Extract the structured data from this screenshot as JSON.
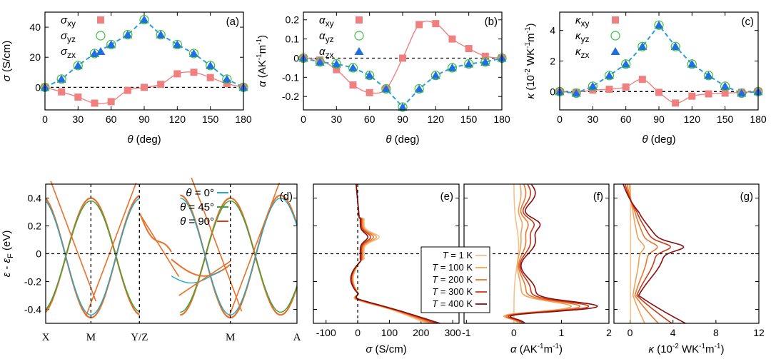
{
  "colors": {
    "pink": "#f08080",
    "dash": "#2a9fd6",
    "green": "#3cbf3c",
    "blue": "#1f6fe0",
    "band0": "#22a7c9",
    "band45": "#3aa23a",
    "band90": "#e03a1e",
    "bandbase": "#e8702a",
    "T1": "#f2c38a",
    "T100": "#f2a25a",
    "T200": "#e9772f",
    "T300": "#c83a18",
    "T400": "#8b0d0d"
  },
  "chart_data": [
    {
      "id": "a",
      "type": "scatter",
      "panel_label": "(a)",
      "ylabel_sym": "σ",
      "ylabel_unit": " (S/cm)",
      "xlabel_sym": "θ",
      "xlabel_unit": " (deg)",
      "xlim": [
        0,
        180
      ],
      "ylim": [
        -15,
        50
      ],
      "xticks": [
        "0",
        "30",
        "60",
        "90",
        "120",
        "150",
        "180"
      ],
      "xtick_vals": [
        0,
        30,
        60,
        90,
        120,
        150,
        180
      ],
      "yticks": [
        "0",
        "20",
        "40"
      ],
      "ytick_vals": [
        0,
        20,
        40
      ],
      "x": [
        0,
        15,
        30,
        45,
        60,
        75,
        90,
        105,
        120,
        135,
        150,
        165,
        180
      ],
      "series": [
        {
          "name": "xy",
          "sym": "σ",
          "sub": "xy",
          "values": [
            0,
            -3,
            -6.5,
            -10.5,
            -9.5,
            -2,
            0,
            2,
            9,
            10,
            6.5,
            2.5,
            0
          ]
        },
        {
          "name": "yz",
          "sym": "σ",
          "sub": "yz",
          "values": [
            0,
            5.5,
            14.5,
            22.5,
            28.5,
            35,
            45,
            35,
            28.5,
            22.5,
            14.5,
            5.5,
            0
          ]
        },
        {
          "name": "zx",
          "sym": "σ",
          "sub": "zx",
          "values": [
            0,
            5.5,
            14.5,
            22.5,
            28.5,
            35,
            45,
            35,
            28.5,
            22.5,
            14.5,
            5.5,
            0
          ]
        }
      ]
    },
    {
      "id": "b",
      "type": "scatter",
      "panel_label": "(b)",
      "ylabel_sym": "α",
      "ylabel_unit": " (AK-1m-1)",
      "xlabel_sym": "θ",
      "xlabel_unit": " (deg)",
      "xlim": [
        0,
        180
      ],
      "ylim": [
        -0.27,
        0.24
      ],
      "xticks": [
        "0",
        "30",
        "60",
        "90",
        "120",
        "150",
        "180"
      ],
      "xtick_vals": [
        0,
        30,
        60,
        90,
        120,
        150,
        180
      ],
      "yticks": [
        "-0.2",
        "-0.1",
        "0",
        "0.1",
        "0.2"
      ],
      "ytick_vals": [
        -0.2,
        -0.1,
        0,
        0.1,
        0.2
      ],
      "x": [
        0,
        15,
        30,
        45,
        60,
        75,
        90,
        105,
        120,
        135,
        150,
        165,
        180
      ],
      "series": [
        {
          "name": "xy",
          "sym": "α",
          "sub": "xy",
          "values": [
            0,
            -0.01,
            -0.06,
            -0.14,
            -0.18,
            -0.16,
            0,
            0.175,
            0.18,
            0.1,
            0.05,
            0.01,
            0
          ]
        },
        {
          "name": "yz",
          "sym": "α",
          "sub": "yz",
          "values": [
            0,
            -0.02,
            -0.03,
            -0.05,
            -0.09,
            -0.16,
            -0.255,
            -0.16,
            -0.09,
            -0.05,
            -0.03,
            -0.02,
            0
          ]
        },
        {
          "name": "zx",
          "sym": "α",
          "sub": "zx",
          "values": [
            0,
            -0.02,
            -0.03,
            -0.05,
            -0.09,
            -0.16,
            -0.255,
            -0.16,
            -0.09,
            -0.05,
            -0.03,
            -0.02,
            0
          ]
        }
      ]
    },
    {
      "id": "c",
      "type": "scatter",
      "panel_label": "(c)",
      "ylabel_sym": "κ",
      "ylabel_unit": " (10-2 WK-1m-1)",
      "xlabel_sym": "θ",
      "xlabel_unit": " (deg)",
      "xlim": [
        0,
        180
      ],
      "ylim": [
        -1.2,
        5.2
      ],
      "xticks": [
        "0",
        "30",
        "60",
        "90",
        "120",
        "150",
        "180"
      ],
      "xtick_vals": [
        0,
        30,
        60,
        90,
        120,
        150,
        180
      ],
      "yticks": [
        "0",
        "2",
        "4"
      ],
      "ytick_vals": [
        0,
        2,
        4
      ],
      "x": [
        0,
        15,
        30,
        45,
        60,
        75,
        90,
        105,
        120,
        135,
        150,
        165,
        180
      ],
      "series": [
        {
          "name": "xy",
          "sym": "κ",
          "sub": "xy",
          "values": [
            0,
            -0.05,
            0.1,
            0.15,
            0.3,
            0.8,
            -0.05,
            -0.75,
            -0.3,
            -0.15,
            -0.1,
            -0.05,
            0
          ]
        },
        {
          "name": "yz",
          "sym": "κ",
          "sub": "yz",
          "values": [
            0,
            -0.1,
            0.35,
            1.05,
            1.8,
            2.95,
            4.35,
            2.95,
            1.8,
            1.05,
            0.35,
            -0.1,
            0
          ]
        },
        {
          "name": "zx",
          "sym": "κ",
          "sub": "zx",
          "values": [
            0,
            -0.1,
            0.35,
            1.05,
            1.8,
            2.95,
            4.35,
            2.95,
            1.8,
            1.05,
            0.35,
            -0.1,
            0
          ]
        }
      ]
    },
    {
      "id": "d",
      "type": "line",
      "panel_label": "(d)",
      "ylabel": "ε - εF (eV)",
      "ylim": [
        -0.5,
        0.5
      ],
      "yticks": [
        "-0.4",
        "-0.2",
        "0",
        "0.2",
        "0.4"
      ],
      "ytick_vals": [
        -0.4,
        -0.2,
        0,
        0.2,
        0.4
      ],
      "kpoints": [
        "X",
        "M",
        "Y/Z",
        "M",
        "A"
      ],
      "kpoint_pos": [
        0,
        0.18,
        0.373,
        0.735,
        1.0
      ],
      "legend": [
        {
          "sym": "θ",
          "text": " = 0°"
        },
        {
          "sym": "θ",
          "text": " = 45°"
        },
        {
          "sym": "θ",
          "text": " = 90°"
        }
      ]
    },
    {
      "id": "e",
      "type": "line",
      "panel_label": "(e)",
      "xlabel_sym": "σ",
      "xlabel_unit": " (S/cm)",
      "xlim": [
        -140,
        320
      ],
      "ylim": [
        -0.5,
        0.5
      ],
      "xticks": [
        "-100",
        "0",
        "100",
        "200",
        "300"
      ],
      "xtick_vals": [
        -100,
        0,
        100,
        200,
        300
      ],
      "legend": [
        "T = 1 K",
        "T = 100 K",
        "T = 200 K",
        "T = 300 K",
        "T = 400 K"
      ]
    },
    {
      "id": "f",
      "type": "line",
      "panel_label": "(f)",
      "xlabel_sym": "α",
      "xlabel_unit": " (AK-1m-1)",
      "xlim": [
        -1.05,
        2.0
      ],
      "ylim": [
        -0.5,
        0.5
      ],
      "xticks": [
        "-1",
        "0",
        "1",
        "2"
      ],
      "xtick_vals": [
        -1,
        0,
        1,
        2
      ]
    },
    {
      "id": "g",
      "type": "line",
      "panel_label": "(g)",
      "xlabel_sym": "κ",
      "xlabel_unit": " (10-2 WK-1m-1)",
      "xlim": [
        -1.5,
        12
      ],
      "ylim": [
        -0.5,
        0.5
      ],
      "xticks": [
        "0",
        "4",
        "8",
        "12"
      ],
      "xtick_vals": [
        0,
        4,
        8,
        12
      ]
    }
  ]
}
